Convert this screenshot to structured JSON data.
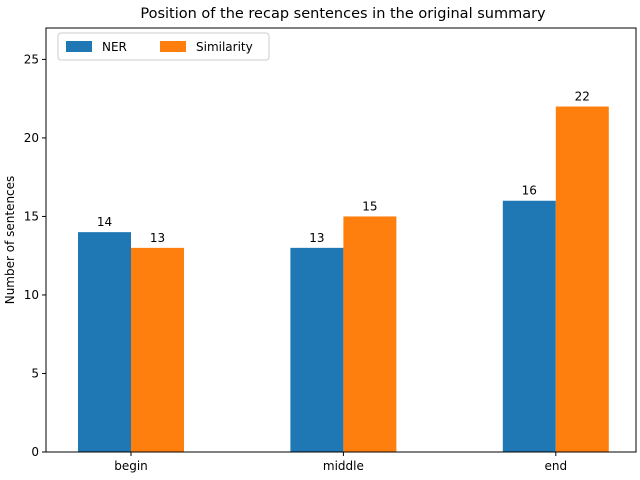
{
  "chart_data": {
    "type": "bar",
    "title": "Position of the recap sentences in the original summary",
    "xlabel": "",
    "ylabel": "Number of sentences",
    "categories": [
      "begin",
      "middle",
      "end"
    ],
    "series": [
      {
        "name": "NER",
        "values": [
          14,
          13,
          16
        ],
        "color": "#1f77b4"
      },
      {
        "name": "Similarity",
        "values": [
          13,
          15,
          22
        ],
        "color": "#ff7f0e"
      }
    ],
    "ylim": [
      0,
      27
    ],
    "yticks": [
      0,
      5,
      10,
      15,
      20,
      25
    ],
    "grid": false,
    "legend_position": "top-left",
    "legend_columns": 2
  }
}
